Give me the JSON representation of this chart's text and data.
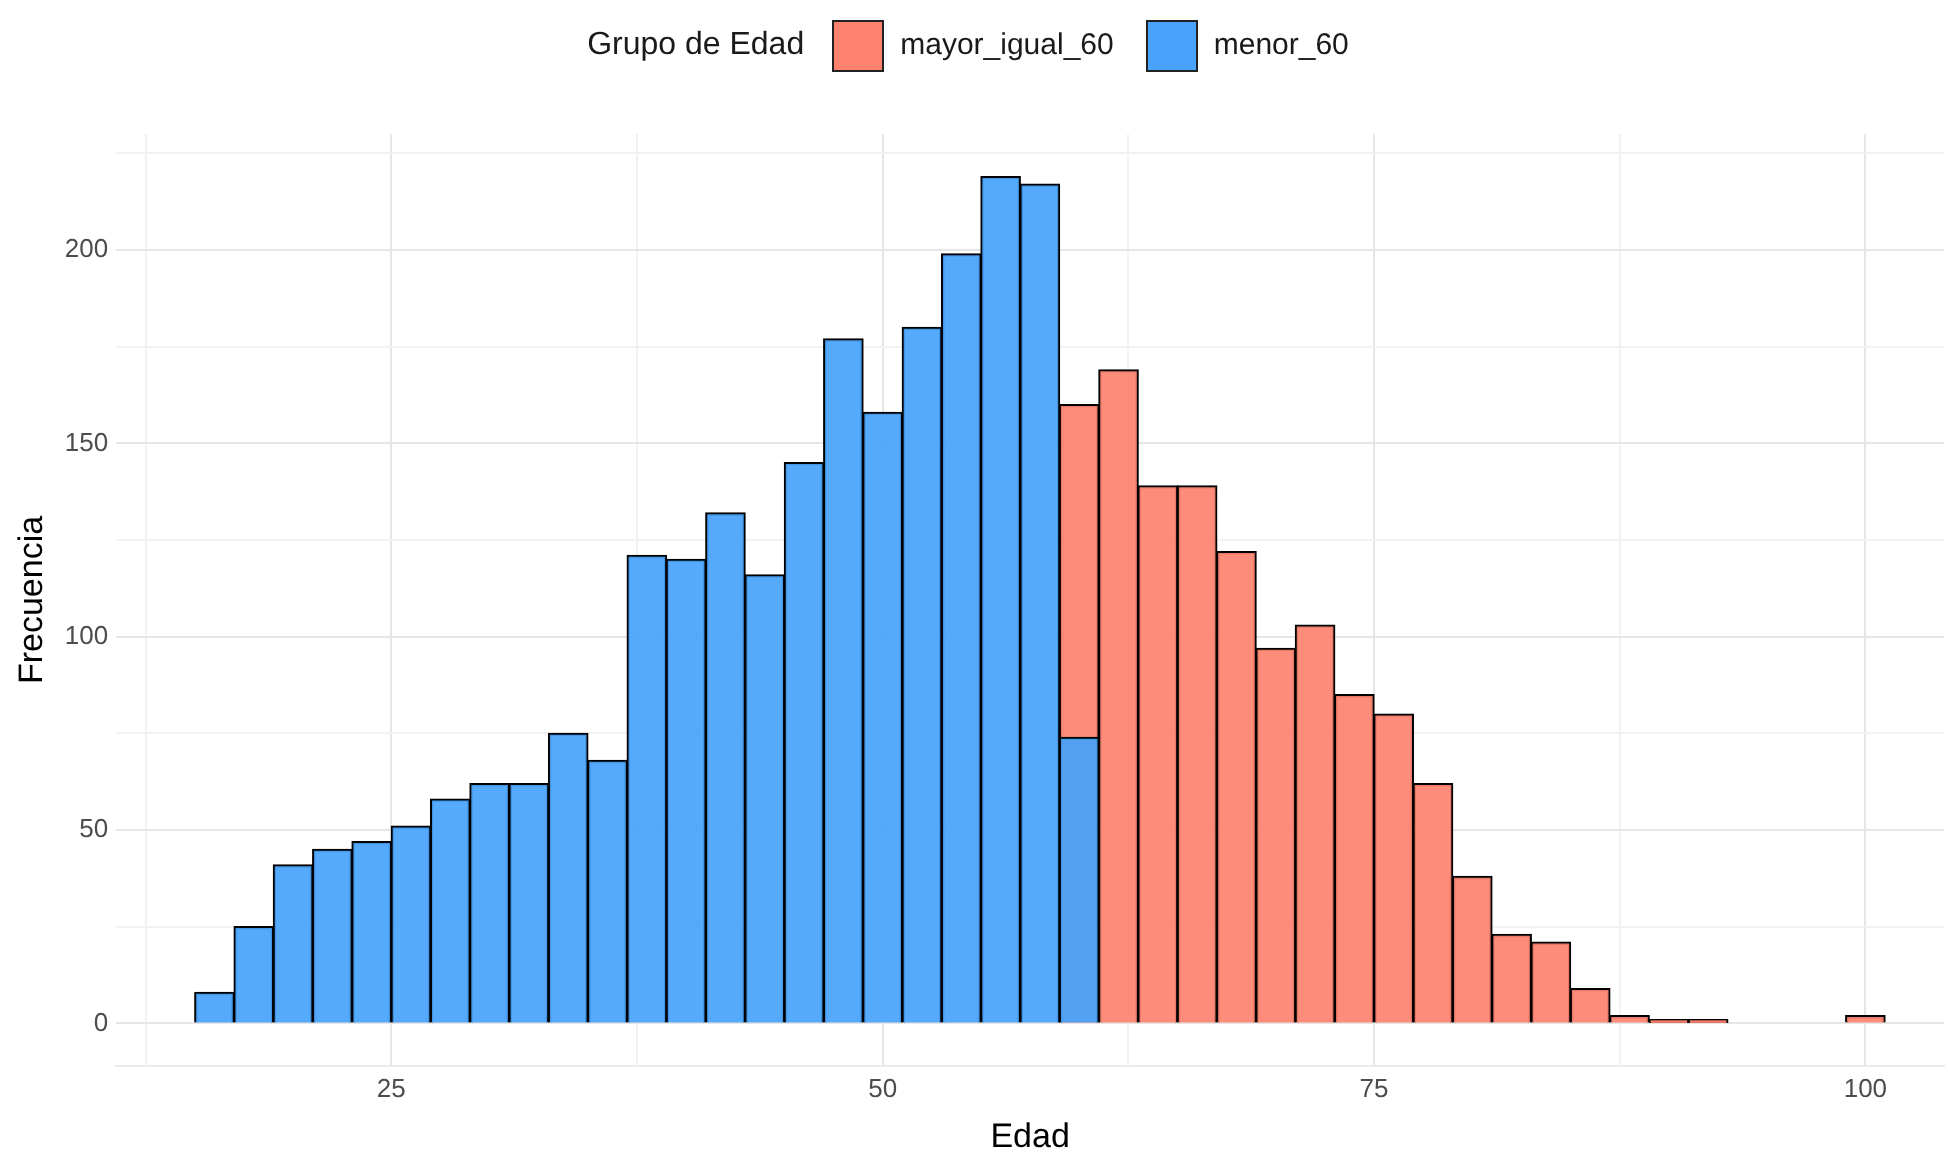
{
  "chart_data": {
    "type": "histogram",
    "xlabel": "Edad",
    "ylabel": "Frecuencia",
    "legend_title": "Grupo de Edad",
    "legend": "top",
    "grid": true,
    "bins": [
      15,
      17,
      19,
      21,
      23,
      25,
      27,
      29,
      31,
      33,
      35,
      37,
      39,
      41,
      43,
      45,
      47,
      49,
      51,
      53,
      55,
      57,
      59,
      61,
      63,
      65,
      67,
      69,
      71,
      73,
      75,
      77,
      79,
      81,
      83,
      85,
      87,
      89,
      91,
      93,
      95,
      97,
      99,
      101
    ],
    "series": [
      {
        "name": "mayor_igual_60",
        "color": "#fd8270",
        "values": [
          null,
          null,
          null,
          null,
          null,
          null,
          null,
          null,
          null,
          null,
          null,
          null,
          null,
          null,
          null,
          null,
          null,
          null,
          null,
          null,
          null,
          null,
          160,
          169,
          139,
          139,
          122,
          97,
          103,
          85,
          80,
          62,
          38,
          23,
          21,
          9,
          2,
          1,
          1,
          0,
          0,
          0,
          2
        ]
      },
      {
        "name": "menor_60",
        "color": "#47a3fb",
        "values": [
          8,
          25,
          41,
          45,
          47,
          51,
          58,
          62,
          62,
          75,
          68,
          121,
          120,
          132,
          116,
          145,
          177,
          158,
          180,
          199,
          219,
          217,
          74,
          null,
          null,
          null,
          null,
          null,
          null,
          null,
          null,
          null,
          null,
          null,
          null,
          null,
          null,
          null,
          null,
          null,
          null,
          null,
          null
        ]
      }
    ],
    "xlim": [
      11,
      104
    ],
    "xticks": [
      25,
      50,
      75,
      100
    ],
    "ylim": [
      -11,
      230
    ],
    "yticks": [
      0,
      50,
      100,
      150,
      200
    ]
  }
}
